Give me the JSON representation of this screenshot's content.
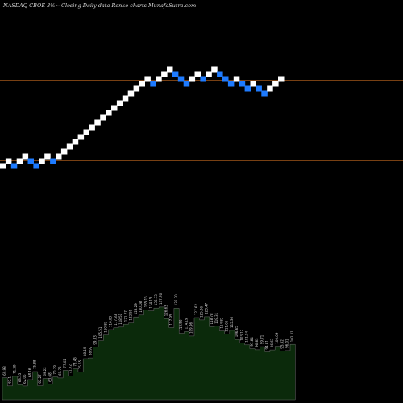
{
  "header": {
    "title": "NASDAQ CBOE 3%~ Closing Daily data Renko charts MunafaSutra.com"
  },
  "colors": {
    "background": "#000000",
    "up_brick": "#ffffff",
    "down_brick": "#1e7bff",
    "level_line": "#c0661f",
    "volume_fill": "#0b2a0b",
    "volume_outline": "#6b6b6b",
    "label_text": "#dddddd"
  },
  "chart_data": {
    "type": "renko",
    "title": "NASDAQ CBOE 3%~ Closing Daily data Renko charts MunafaSutra.com",
    "brick_size_pct": 3,
    "horizontal_levels": [
      {
        "name": "upper",
        "value": 208.5
      },
      {
        "name": "lower",
        "value": 187.0
      }
    ],
    "bricks": [
      {
        "index": 0,
        "price": 185.5,
        "direction": "up"
      },
      {
        "index": 1,
        "price": 186.8,
        "direction": "up"
      },
      {
        "index": 2,
        "price": 185.5,
        "direction": "down"
      },
      {
        "index": 3,
        "price": 186.8,
        "direction": "up"
      },
      {
        "index": 4,
        "price": 188.1,
        "direction": "up"
      },
      {
        "index": 5,
        "price": 186.8,
        "direction": "down"
      },
      {
        "index": 6,
        "price": 185.5,
        "direction": "down"
      },
      {
        "index": 7,
        "price": 186.8,
        "direction": "up"
      },
      {
        "index": 8,
        "price": 188.1,
        "direction": "up"
      },
      {
        "index": 9,
        "price": 186.8,
        "direction": "down"
      },
      {
        "index": 10,
        "price": 188.1,
        "direction": "up"
      },
      {
        "index": 11,
        "price": 189.4,
        "direction": "up"
      },
      {
        "index": 12,
        "price": 190.7,
        "direction": "up"
      },
      {
        "index": 13,
        "price": 192.0,
        "direction": "up"
      },
      {
        "index": 14,
        "price": 193.3,
        "direction": "up"
      },
      {
        "index": 15,
        "price": 194.6,
        "direction": "up"
      },
      {
        "index": 16,
        "price": 195.9,
        "direction": "up"
      },
      {
        "index": 17,
        "price": 197.2,
        "direction": "up"
      },
      {
        "index": 18,
        "price": 198.5,
        "direction": "up"
      },
      {
        "index": 19,
        "price": 199.8,
        "direction": "up"
      },
      {
        "index": 20,
        "price": 201.1,
        "direction": "up"
      },
      {
        "index": 21,
        "price": 202.4,
        "direction": "up"
      },
      {
        "index": 22,
        "price": 203.7,
        "direction": "up"
      },
      {
        "index": 23,
        "price": 205.0,
        "direction": "up"
      },
      {
        "index": 24,
        "price": 206.3,
        "direction": "up"
      },
      {
        "index": 25,
        "price": 207.6,
        "direction": "up"
      },
      {
        "index": 26,
        "price": 208.9,
        "direction": "up"
      },
      {
        "index": 27,
        "price": 207.6,
        "direction": "down"
      },
      {
        "index": 28,
        "price": 208.9,
        "direction": "up"
      },
      {
        "index": 29,
        "price": 210.2,
        "direction": "up"
      },
      {
        "index": 30,
        "price": 211.5,
        "direction": "up"
      },
      {
        "index": 31,
        "price": 210.2,
        "direction": "down"
      },
      {
        "index": 32,
        "price": 208.9,
        "direction": "down"
      },
      {
        "index": 33,
        "price": 207.6,
        "direction": "down"
      },
      {
        "index": 34,
        "price": 208.9,
        "direction": "up"
      },
      {
        "index": 35,
        "price": 210.2,
        "direction": "up"
      },
      {
        "index": 36,
        "price": 208.9,
        "direction": "down"
      },
      {
        "index": 37,
        "price": 210.2,
        "direction": "up"
      },
      {
        "index": 38,
        "price": 211.5,
        "direction": "up"
      },
      {
        "index": 39,
        "price": 210.2,
        "direction": "down"
      },
      {
        "index": 40,
        "price": 208.9,
        "direction": "down"
      },
      {
        "index": 41,
        "price": 207.6,
        "direction": "down"
      },
      {
        "index": 42,
        "price": 208.9,
        "direction": "up"
      },
      {
        "index": 43,
        "price": 207.6,
        "direction": "down"
      },
      {
        "index": 44,
        "price": 206.3,
        "direction": "down"
      },
      {
        "index": 45,
        "price": 207.6,
        "direction": "up"
      },
      {
        "index": 46,
        "price": 206.3,
        "direction": "down"
      },
      {
        "index": 47,
        "price": 205.0,
        "direction": "down"
      },
      {
        "index": 48,
        "price": 206.3,
        "direction": "up"
      },
      {
        "index": 49,
        "price": 207.6,
        "direction": "up"
      },
      {
        "index": 50,
        "price": 208.9,
        "direction": "up"
      }
    ],
    "volume_labels": [
      "69.93",
      "62.1",
      "71.29",
      "63.35",
      "62.06",
      "68.16",
      "75.88",
      "62.27",
      "69.22",
      "63.68",
      "70.79",
      "69.73",
      "77.02",
      "71.72",
      "78.46",
      "75.65",
      "88.19",
      "88.92",
      "99.33",
      "105.51",
      "110.83",
      "116.03",
      "117.83",
      "118.51",
      "121.27",
      "122.55",
      "128.29",
      "130.08",
      "135.15",
      "134.15",
      "136.73",
      "137.76",
      "126.63",
      "117.95",
      "136.70",
      "112.59",
      "114.19",
      "109.96",
      "127.62",
      "125.36",
      "128.47",
      "118.78",
      "119.31",
      "114.82",
      "111.66",
      "115.36",
      "106.65",
      "103.12",
      "101.54",
      "97.84",
      "96.83",
      "99.71",
      "94.81",
      "96.67",
      "100.09",
      "95.52",
      "96.01",
      "102.01"
    ]
  }
}
